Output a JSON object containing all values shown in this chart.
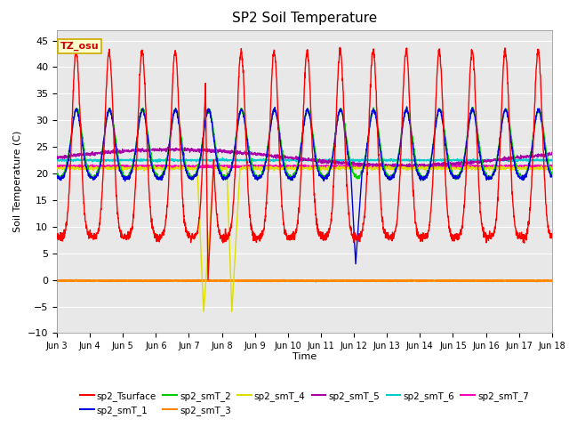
{
  "title": "SP2 Soil Temperature",
  "xlabel": "Time",
  "ylabel": "Soil Temperature (C)",
  "ylim": [
    -10,
    47
  ],
  "yticks": [
    -10,
    -5,
    0,
    5,
    10,
    15,
    20,
    25,
    30,
    35,
    40,
    45
  ],
  "x_tick_labels": [
    "Jun 3",
    "Jun 4",
    "Jun 5",
    "Jun 6",
    "Jun 7",
    "Jun 8",
    "Jun 9",
    "Jun 10",
    "Jun 11",
    "Jun 12",
    "Jun 13",
    "Jun 14",
    "Jun 15",
    "Jun 16",
    "Jun 17",
    "Jun 18"
  ],
  "annotation_text": "TZ_osu",
  "annotation_bg": "#FFFFCC",
  "annotation_border": "#CCAA00",
  "series_colors": {
    "sp2_Tsurface": "#FF0000",
    "sp2_smT_1": "#0000DD",
    "sp2_smT_2": "#00CC00",
    "sp2_smT_3": "#FF8800",
    "sp2_smT_4": "#DDDD00",
    "sp2_smT_5": "#AA00AA",
    "sp2_smT_6": "#00CCCC",
    "sp2_smT_7": "#FF00BB"
  },
  "plot_bg_outer": "#DCDCDC",
  "plot_bg_inner": "#E8E8E8",
  "grid_color": "#FFFFFF"
}
